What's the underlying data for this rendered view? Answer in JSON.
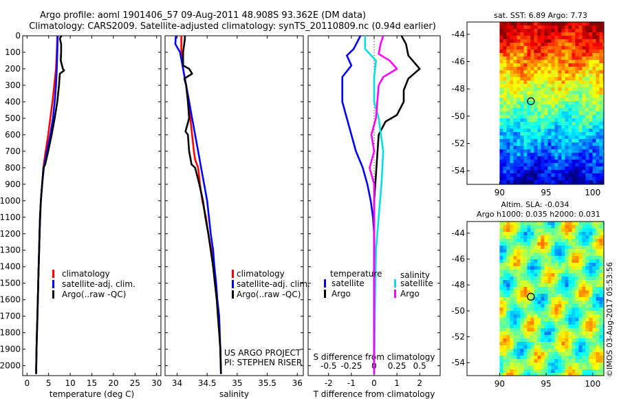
{
  "header": {
    "line1": "Argo profile: aoml 1901406_57 09-Aug-2011 48.908S 93.362E (DM data)",
    "line2": "Climatology: CARS2009. Satellite-adjusted climatology: synTS_20110809.nc (0.94d earlier)"
  },
  "side_label": "©IMOS 03-Aug-2017 05:53:56",
  "project_credit": [
    "US ARGO PROJECT",
    "PI: STEPHEN RISER"
  ],
  "colors": {
    "climatology": "#ff0000",
    "satellite": "#0000ff",
    "argo": "#000000",
    "argo_salinity": "#ff00ff",
    "satellite_salinity": "#00e0e0",
    "marker": "#000000"
  },
  "chart_data": [
    {
      "id": "temperature",
      "type": "line",
      "xlabel": "temperature (deg C)",
      "xlim": [
        -1,
        31
      ],
      "xticks": [
        0,
        5,
        10,
        15,
        20,
        25,
        30
      ],
      "ylim": [
        2060,
        0
      ],
      "yticks": [
        0,
        100,
        200,
        300,
        400,
        500,
        600,
        700,
        800,
        900,
        1000,
        1100,
        1200,
        1300,
        1400,
        1500,
        1600,
        1700,
        1800,
        1900,
        2000
      ],
      "legend": [
        "climatology",
        "satellite-adj. clim.",
        "Argo(..raw -QC)"
      ],
      "series": [
        {
          "name": "climatology",
          "color": "#ff0000",
          "points": [
            [
              7.0,
              0
            ],
            [
              6.9,
              100
            ],
            [
              6.7,
              200
            ],
            [
              6.3,
              300
            ],
            [
              5.9,
              400
            ],
            [
              5.4,
              500
            ],
            [
              4.9,
              600
            ],
            [
              4.3,
              700
            ],
            [
              3.8,
              800
            ],
            [
              3.5,
              900
            ],
            [
              3.2,
              1000
            ],
            [
              3.05,
              1100
            ],
            [
              2.9,
              1200
            ],
            [
              2.8,
              1300
            ],
            [
              2.7,
              1400
            ],
            [
              2.6,
              1500
            ],
            [
              2.5,
              1600
            ],
            [
              2.4,
              1700
            ],
            [
              2.3,
              1800
            ],
            [
              2.2,
              1900
            ],
            [
              2.1,
              2050
            ]
          ]
        },
        {
          "name": "satellite-adj. clim.",
          "color": "#0000ff",
          "points": [
            [
              7.1,
              0
            ],
            [
              7.0,
              100
            ],
            [
              6.9,
              200
            ],
            [
              6.7,
              300
            ],
            [
              6.4,
              400
            ],
            [
              6.0,
              500
            ],
            [
              5.4,
              600
            ],
            [
              4.6,
              700
            ],
            [
              3.9,
              800
            ],
            [
              3.5,
              900
            ],
            [
              3.2,
              1000
            ],
            [
              3.05,
              1100
            ],
            [
              2.9,
              1200
            ],
            [
              2.8,
              1300
            ],
            [
              2.7,
              1400
            ],
            [
              2.6,
              1500
            ],
            [
              2.5,
              1600
            ],
            [
              2.4,
              1700
            ],
            [
              2.3,
              1800
            ],
            [
              2.2,
              1900
            ],
            [
              2.1,
              2050
            ]
          ]
        },
        {
          "name": "Argo(..raw -QC)",
          "color": "#000000",
          "points": [
            [
              8.0,
              0
            ],
            [
              7.6,
              15
            ],
            [
              7.9,
              50
            ],
            [
              7.9,
              100
            ],
            [
              7.8,
              150
            ],
            [
              8.3,
              200
            ],
            [
              8.6,
              210
            ],
            [
              7.6,
              230
            ],
            [
              7.4,
              300
            ],
            [
              7.0,
              400
            ],
            [
              6.4,
              500
            ],
            [
              5.7,
              600
            ],
            [
              4.9,
              700
            ],
            [
              4.2,
              780
            ],
            [
              3.8,
              800
            ],
            [
              3.5,
              900
            ],
            [
              3.2,
              1000
            ],
            [
              3.0,
              1100
            ],
            [
              2.9,
              1200
            ],
            [
              2.8,
              1300
            ],
            [
              2.7,
              1400
            ],
            [
              2.6,
              1500
            ],
            [
              2.5,
              1600
            ],
            [
              2.4,
              1700
            ],
            [
              2.3,
              1800
            ],
            [
              2.2,
              1900
            ],
            [
              2.1,
              2050
            ]
          ]
        }
      ]
    },
    {
      "id": "salinity",
      "type": "line",
      "xlabel": "salinity",
      "xlim": [
        33.8,
        36.1
      ],
      "xticks": [
        34,
        34.5,
        35,
        35.5,
        36
      ],
      "ylim": [
        2060,
        0
      ],
      "legend": [
        "climatology",
        "satellite-adj. clim.",
        "Argo(..raw -QC)"
      ],
      "series": [
        {
          "name": "climatology",
          "color": "#ff0000",
          "points": [
            [
              34.07,
              0
            ],
            [
              34.07,
              100
            ],
            [
              34.1,
              200
            ],
            [
              34.15,
              300
            ],
            [
              34.2,
              400
            ],
            [
              34.22,
              500
            ],
            [
              34.25,
              600
            ],
            [
              34.28,
              700
            ],
            [
              34.3,
              750
            ],
            [
              34.35,
              800
            ],
            [
              34.38,
              900
            ],
            [
              34.42,
              1000
            ],
            [
              34.48,
              1100
            ],
            [
              34.52,
              1200
            ],
            [
              34.57,
              1300
            ],
            [
              34.6,
              1400
            ],
            [
              34.63,
              1500
            ],
            [
              34.66,
              1600
            ],
            [
              34.68,
              1700
            ],
            [
              34.7,
              1800
            ],
            [
              34.72,
              1900
            ],
            [
              34.73,
              2050
            ]
          ]
        },
        {
          "name": "satellite-adj. clim.",
          "color": "#0000ff",
          "points": [
            [
              33.98,
              0
            ],
            [
              33.97,
              50
            ],
            [
              34.05,
              100
            ],
            [
              34.1,
              200
            ],
            [
              34.15,
              300
            ],
            [
              34.2,
              400
            ],
            [
              34.25,
              500
            ],
            [
              34.3,
              600
            ],
            [
              34.35,
              700
            ],
            [
              34.4,
              800
            ],
            [
              34.45,
              900
            ],
            [
              34.5,
              1000
            ],
            [
              34.53,
              1100
            ],
            [
              34.56,
              1200
            ],
            [
              34.6,
              1300
            ],
            [
              34.62,
              1400
            ],
            [
              34.65,
              1500
            ],
            [
              34.67,
              1600
            ],
            [
              34.7,
              1700
            ],
            [
              34.71,
              1800
            ],
            [
              34.72,
              1900
            ],
            [
              34.73,
              2050
            ]
          ]
        },
        {
          "name": "Argo(..raw -QC)",
          "color": "#000000",
          "points": [
            [
              34.13,
              0
            ],
            [
              34.13,
              20
            ],
            [
              34.1,
              100
            ],
            [
              34.1,
              180
            ],
            [
              34.2,
              200
            ],
            [
              34.25,
              230
            ],
            [
              34.12,
              260
            ],
            [
              34.15,
              300
            ],
            [
              34.18,
              400
            ],
            [
              34.2,
              500
            ],
            [
              34.14,
              580
            ],
            [
              34.18,
              600
            ],
            [
              34.2,
              700
            ],
            [
              34.24,
              780
            ],
            [
              34.3,
              800
            ],
            [
              34.37,
              900
            ],
            [
              34.43,
              1000
            ],
            [
              34.47,
              1100
            ],
            [
              34.52,
              1200
            ],
            [
              34.56,
              1300
            ],
            [
              34.6,
              1400
            ],
            [
              34.63,
              1500
            ],
            [
              34.66,
              1600
            ],
            [
              34.68,
              1700
            ],
            [
              34.7,
              1800
            ],
            [
              34.72,
              1900
            ],
            [
              34.73,
              2050
            ]
          ]
        }
      ]
    },
    {
      "id": "differences",
      "type": "line",
      "xlabel": "T difference from climatology",
      "top_axis_label": "S difference from climatology",
      "xlim": [
        -2.9,
        2.9
      ],
      "xticks": [
        -2,
        -1,
        0,
        1,
        2
      ],
      "s_xticks": [
        -0.5,
        -0.25,
        0,
        0.25,
        0.5
      ],
      "s_to_t_scale": 4,
      "ylim": [
        2060,
        0
      ],
      "legend": {
        "temperature_heading": "temperature",
        "salinity_heading": "salinity",
        "items": [
          "satellite",
          "Argo",
          "satellite",
          "Argo"
        ]
      },
      "series": [
        {
          "name": "temperature satellite",
          "variable": "T",
          "color": "#0000ff",
          "points": [
            [
              -0.6,
              0
            ],
            [
              -0.9,
              80
            ],
            [
              -1.2,
              120
            ],
            [
              -1.0,
              180
            ],
            [
              -1.4,
              250
            ],
            [
              -1.4,
              400
            ],
            [
              -1.2,
              500
            ],
            [
              -1.0,
              600
            ],
            [
              -0.8,
              700
            ],
            [
              -0.5,
              800
            ],
            [
              -0.3,
              900
            ],
            [
              -0.15,
              1000
            ],
            [
              -0.05,
              1100
            ],
            [
              0,
              1200
            ],
            [
              0,
              2050
            ]
          ]
        },
        {
          "name": "temperature Argo",
          "variable": "T",
          "color": "#000000",
          "points": [
            [
              1.2,
              0
            ],
            [
              1.4,
              50
            ],
            [
              1.5,
              120
            ],
            [
              2.0,
              200
            ],
            [
              1.5,
              260
            ],
            [
              1.3,
              330
            ],
            [
              1.3,
              400
            ],
            [
              1.0,
              480
            ],
            [
              0.5,
              520
            ],
            [
              0.2,
              600
            ],
            [
              0.1,
              800
            ],
            [
              0.05,
              900
            ],
            [
              0,
              1000
            ],
            [
              0,
              2050
            ]
          ]
        },
        {
          "name": "salinity satellite",
          "variable": "S",
          "color": "#00e0e0",
          "points": [
            [
              -0.1,
              0
            ],
            [
              -0.1,
              80
            ],
            [
              0.02,
              150
            ],
            [
              0,
              250
            ],
            [
              0,
              400
            ],
            [
              0.05,
              500
            ],
            [
              0.1,
              700
            ],
            [
              0.08,
              900
            ],
            [
              0.05,
              1100
            ],
            [
              0.02,
              1300
            ],
            [
              0.01,
              1600
            ],
            [
              0,
              2050
            ]
          ]
        },
        {
          "name": "salinity Argo",
          "variable": "S",
          "color": "#ff00ff",
          "points": [
            [
              0.1,
              0
            ],
            [
              0.07,
              50
            ],
            [
              0.05,
              110
            ],
            [
              0.17,
              150
            ],
            [
              0.25,
              200
            ],
            [
              0.1,
              250
            ],
            [
              0.05,
              300
            ],
            [
              0.02,
              500
            ],
            [
              -0.03,
              600
            ],
            [
              0,
              700
            ],
            [
              -0.05,
              800
            ],
            [
              0,
              900
            ],
            [
              0,
              2050
            ]
          ]
        }
      ]
    }
  ],
  "maps": [
    {
      "id": "sst-map",
      "title": "sat. SST: 6.89  Argo: 7.73",
      "lat_ticks": [
        "-44",
        "-46",
        "-48",
        "-50",
        "-52",
        "-54"
      ],
      "lon_ticks": [
        "90",
        "95",
        "100"
      ],
      "marker": {
        "lat": -48.908,
        "lon": 93.362
      },
      "colormap": "jet"
    },
    {
      "id": "sla-map",
      "title_lines": [
        "Altim. SLA: -0.034",
        "Argo h1000: 0.035 h2000: 0.031"
      ],
      "lat_ticks": [
        "-44",
        "-46",
        "-48",
        "-50",
        "-52",
        "-54"
      ],
      "lon_ticks": [
        "90",
        "95",
        "100"
      ],
      "marker": {
        "lat": -48.908,
        "lon": 93.362
      },
      "colormap": "jet"
    }
  ]
}
